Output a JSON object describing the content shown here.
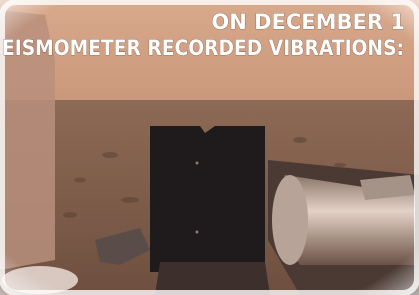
{
  "caption": {
    "lines": [
      "ON DECEMBER 1",
      "EISMOMETER RECORDED VIBRATIONS:"
    ]
  }
}
